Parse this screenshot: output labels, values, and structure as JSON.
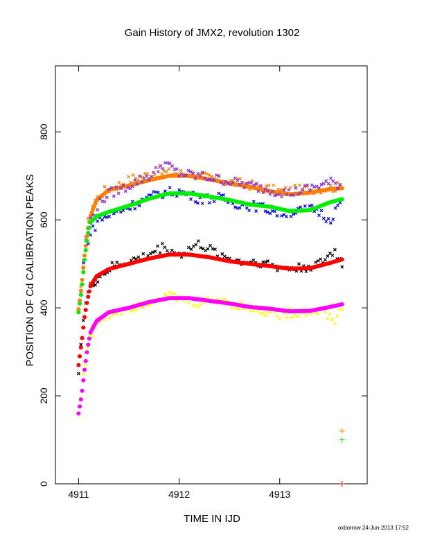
{
  "chart_data": {
    "type": "scatter",
    "title": "Gain History of JMX2, revolution 1302",
    "xlabel": "TIME IN IJD",
    "ylabel": "POSITION OF Cd CALIBRATION PEAKS",
    "xlim": [
      4910.77,
      4913.87
    ],
    "ylim": [
      0,
      950
    ],
    "xticks": [
      "4911",
      "4912",
      "4913"
    ],
    "yticks": [
      "0",
      "200",
      "400",
      "600",
      "800"
    ],
    "grid": false,
    "legend": "none",
    "series": [
      {
        "color": "#ff8000",
        "markers": "raw",
        "values": [
          [
            4911.0,
            390
          ],
          [
            4911.02,
            430
          ],
          [
            4911.04,
            480
          ],
          [
            4911.06,
            540
          ],
          [
            4911.08,
            580
          ],
          [
            4911.1,
            600
          ],
          [
            4911.15,
            640
          ],
          [
            4911.25,
            665
          ],
          [
            4911.4,
            680
          ],
          [
            4911.55,
            695
          ],
          [
            4911.8,
            708
          ],
          [
            4912.1,
            705
          ],
          [
            4912.4,
            690
          ],
          [
            4912.7,
            680
          ],
          [
            4913.0,
            665
          ],
          [
            4913.3,
            670
          ],
          [
            4913.6,
            675
          ]
        ]
      },
      {
        "color": "#ff8000",
        "markers": "smooth",
        "values": [
          [
            4911.0,
            395
          ],
          [
            4911.03,
            450
          ],
          [
            4911.06,
            520
          ],
          [
            4911.09,
            575
          ],
          [
            4911.12,
            610
          ],
          [
            4911.18,
            645
          ],
          [
            4911.3,
            668
          ],
          [
            4911.5,
            678
          ],
          [
            4911.7,
            690
          ],
          [
            4911.9,
            700
          ],
          [
            4912.1,
            700
          ],
          [
            4912.3,
            692
          ],
          [
            4912.5,
            683
          ],
          [
            4912.7,
            675
          ],
          [
            4912.9,
            665
          ],
          [
            4913.1,
            658
          ],
          [
            4913.3,
            662
          ],
          [
            4913.5,
            670
          ],
          [
            4913.62,
            672
          ]
        ]
      },
      {
        "color": "#8a2be2",
        "markers": "raw",
        "values": [
          [
            4911.05,
            510
          ],
          [
            4911.1,
            590
          ],
          [
            4911.2,
            635
          ],
          [
            4911.3,
            660
          ],
          [
            4911.45,
            672
          ],
          [
            4911.6,
            690
          ],
          [
            4911.75,
            705
          ],
          [
            4911.85,
            730
          ],
          [
            4912.0,
            705
          ],
          [
            4912.2,
            700
          ],
          [
            4912.45,
            690
          ],
          [
            4912.7,
            678
          ],
          [
            4912.9,
            668
          ],
          [
            4913.1,
            660
          ],
          [
            4913.3,
            672
          ],
          [
            4913.5,
            685
          ],
          [
            4913.6,
            680
          ]
        ]
      },
      {
        "color": "#0000ff",
        "markers": "raw",
        "values": [
          [
            4911.05,
            500
          ],
          [
            4911.1,
            560
          ],
          [
            4911.2,
            600
          ],
          [
            4911.3,
            610
          ],
          [
            4911.45,
            625
          ],
          [
            4911.6,
            640
          ],
          [
            4911.8,
            660
          ],
          [
            4912.0,
            665
          ],
          [
            4912.2,
            648
          ],
          [
            4912.4,
            650
          ],
          [
            4912.6,
            635
          ],
          [
            4912.8,
            630
          ],
          [
            4913.0,
            615
          ],
          [
            4913.2,
            620
          ],
          [
            4913.35,
            625
          ],
          [
            4913.5,
            600
          ],
          [
            4913.6,
            640
          ]
        ]
      },
      {
        "color": "#00ee00",
        "markers": "smooth",
        "values": [
          [
            4911.0,
            390
          ],
          [
            4911.03,
            440
          ],
          [
            4911.06,
            510
          ],
          [
            4911.09,
            565
          ],
          [
            4911.12,
            595
          ],
          [
            4911.18,
            608
          ],
          [
            4911.3,
            618
          ],
          [
            4911.5,
            632
          ],
          [
            4911.7,
            648
          ],
          [
            4911.9,
            660
          ],
          [
            4912.1,
            660
          ],
          [
            4912.3,
            653
          ],
          [
            4912.5,
            645
          ],
          [
            4912.7,
            635
          ],
          [
            4912.9,
            630
          ],
          [
            4913.1,
            620
          ],
          [
            4913.3,
            622
          ],
          [
            4913.5,
            640
          ],
          [
            4913.62,
            647
          ]
        ]
      },
      {
        "color": "#000000",
        "markers": "raw",
        "values": [
          [
            4911.0,
            260
          ],
          [
            4911.05,
            380
          ],
          [
            4911.1,
            440
          ],
          [
            4911.2,
            470
          ],
          [
            4911.35,
            495
          ],
          [
            4911.5,
            505
          ],
          [
            4911.65,
            515
          ],
          [
            4911.85,
            540
          ],
          [
            4912.0,
            520
          ],
          [
            4912.2,
            545
          ],
          [
            4912.4,
            520
          ],
          [
            4912.6,
            505
          ],
          [
            4912.8,
            505
          ],
          [
            4913.0,
            490
          ],
          [
            4913.2,
            490
          ],
          [
            4913.4,
            500
          ],
          [
            4913.55,
            530
          ],
          [
            4913.62,
            495
          ]
        ]
      },
      {
        "color": "#ff0000",
        "markers": "smooth",
        "values": [
          [
            4911.0,
            270
          ],
          [
            4911.03,
            320
          ],
          [
            4911.06,
            380
          ],
          [
            4911.09,
            420
          ],
          [
            4911.12,
            450
          ],
          [
            4911.18,
            472
          ],
          [
            4911.3,
            488
          ],
          [
            4911.5,
            500
          ],
          [
            4911.7,
            512
          ],
          [
            4911.9,
            521
          ],
          [
            4912.1,
            521
          ],
          [
            4912.3,
            515
          ],
          [
            4912.5,
            506
          ],
          [
            4912.7,
            500
          ],
          [
            4912.9,
            495
          ],
          [
            4913.1,
            489
          ],
          [
            4913.3,
            490
          ],
          [
            4913.5,
            502
          ],
          [
            4913.62,
            510
          ]
        ]
      },
      {
        "color": "#ffff00",
        "markers": "raw",
        "values": [
          [
            4911.0,
            155
          ],
          [
            4911.05,
            250
          ],
          [
            4911.1,
            320
          ],
          [
            4911.2,
            370
          ],
          [
            4911.35,
            390
          ],
          [
            4911.5,
            400
          ],
          [
            4911.65,
            410
          ],
          [
            4911.85,
            430
          ],
          [
            4912.0,
            420
          ],
          [
            4912.2,
            410
          ],
          [
            4912.4,
            420
          ],
          [
            4912.6,
            405
          ],
          [
            4912.8,
            395
          ],
          [
            4913.0,
            385
          ],
          [
            4913.2,
            390
          ],
          [
            4913.4,
            395
          ],
          [
            4913.55,
            370
          ],
          [
            4913.62,
            400
          ]
        ]
      },
      {
        "color": "#ff00ff",
        "markers": "smooth",
        "values": [
          [
            4911.0,
            160
          ],
          [
            4911.03,
            200
          ],
          [
            4911.06,
            260
          ],
          [
            4911.09,
            310
          ],
          [
            4911.12,
            345
          ],
          [
            4911.18,
            370
          ],
          [
            4911.3,
            390
          ],
          [
            4911.5,
            400
          ],
          [
            4911.7,
            413
          ],
          [
            4911.9,
            422
          ],
          [
            4912.1,
            422
          ],
          [
            4912.3,
            416
          ],
          [
            4912.5,
            410
          ],
          [
            4912.7,
            402
          ],
          [
            4912.9,
            398
          ],
          [
            4913.1,
            392
          ],
          [
            4913.3,
            393
          ],
          [
            4913.5,
            402
          ],
          [
            4913.62,
            408
          ]
        ]
      }
    ],
    "extra_points": [
      {
        "color": "#ff8000",
        "x": 4913.62,
        "y": 120
      },
      {
        "color": "#00ee00",
        "x": 4913.62,
        "y": 100
      },
      {
        "color": "#ff0000",
        "x": 4913.62,
        "y": 0
      }
    ]
  },
  "footer": "oxborrow 24-Jun-2013 17:52"
}
